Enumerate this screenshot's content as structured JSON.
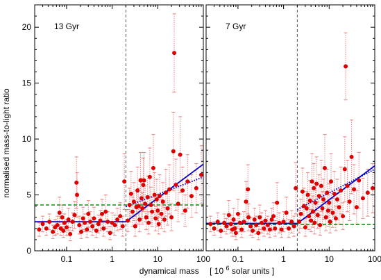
{
  "chart_data": {
    "type": "scatter",
    "xlabel": "dynamical mass",
    "xlabel_units_prefix": "[ 10",
    "xlabel_units_exp": "6",
    "xlabel_units_suffix": " solar units ]",
    "ylabel": "normalised mass-to-light ratio",
    "xscale": "log",
    "xlim": [
      0.02,
      100
    ],
    "ylim": [
      0,
      22
    ],
    "xticks": [
      0.1,
      1,
      10,
      100
    ],
    "xtick_labels": [
      "0.1",
      "1",
      "10",
      "100"
    ],
    "yticks": [
      0,
      5,
      10,
      15,
      20
    ],
    "ytick_labels": [
      "0",
      "5",
      "10",
      "15",
      "20"
    ],
    "grid": false,
    "legend": "none",
    "colors": {
      "points": "#dd0000",
      "errorbars": "#f08080",
      "fit": "#0000cc",
      "constant": "#009900",
      "divider": "#555555"
    },
    "panels": [
      {
        "label": "13 Gyr",
        "vline_x": 2.0,
        "constant_line_y": 4.1,
        "broken_fit": [
          [
            0.02,
            2.6
          ],
          [
            2.0,
            2.6
          ],
          [
            100,
            7.75
          ]
        ],
        "dotted_fit": [
          [
            2.0,
            3.95
          ],
          [
            100,
            6.6
          ]
        ],
        "points": [
          [
            0.025,
            1.9,
            0.6
          ],
          [
            0.03,
            2.4,
            0.7
          ],
          [
            0.036,
            2.0,
            0.6
          ],
          [
            0.042,
            2.6,
            0.7
          ],
          [
            0.05,
            1.7,
            0.6
          ],
          [
            0.056,
            2.1,
            0.7
          ],
          [
            0.063,
            2.3,
            0.8
          ],
          [
            0.07,
            3.4,
            1.4
          ],
          [
            0.075,
            2.0,
            0.6
          ],
          [
            0.08,
            3.0,
            1.1
          ],
          [
            0.085,
            1.8,
            0.6
          ],
          [
            0.09,
            2.5,
            0.8
          ],
          [
            0.1,
            2.1,
            0.7
          ],
          [
            0.11,
            2.8,
            1.0
          ],
          [
            0.12,
            1.5,
            0.6
          ],
          [
            0.135,
            2.6,
            0.8
          ],
          [
            0.15,
            3.2,
            1.2
          ],
          [
            0.165,
            6.1,
            2.3
          ],
          [
            0.17,
            5.0,
            2.0
          ],
          [
            0.19,
            2.3,
            0.8
          ],
          [
            0.21,
            1.7,
            0.6
          ],
          [
            0.23,
            2.9,
            1.0
          ],
          [
            0.25,
            2.5,
            0.8
          ],
          [
            0.28,
            1.9,
            0.7
          ],
          [
            0.3,
            3.3,
            1.2
          ],
          [
            0.33,
            2.6,
            0.9
          ],
          [
            0.37,
            2.2,
            0.8
          ],
          [
            0.4,
            2.9,
            1.0
          ],
          [
            0.45,
            1.8,
            0.6
          ],
          [
            0.5,
            2.4,
            0.8
          ],
          [
            0.55,
            2.7,
            0.9
          ],
          [
            0.6,
            3.3,
            1.3
          ],
          [
            0.65,
            2.0,
            0.7
          ],
          [
            0.72,
            3.5,
            1.5
          ],
          [
            0.8,
            2.6,
            0.9
          ],
          [
            0.9,
            1.6,
            0.6
          ],
          [
            1.0,
            2.5,
            0.9
          ],
          [
            1.15,
            2.3,
            0.9
          ],
          [
            1.3,
            2.8,
            1.0
          ],
          [
            1.5,
            3.1,
            1.2
          ],
          [
            1.7,
            2.2,
            0.9
          ],
          [
            1.85,
            6.2,
            2.5
          ],
          [
            2.2,
            2.7,
            1.0
          ],
          [
            2.4,
            4.1,
            1.5
          ],
          [
            2.6,
            5.1,
            2.0
          ],
          [
            2.8,
            3.5,
            1.3
          ],
          [
            3.0,
            4.4,
            1.7
          ],
          [
            3.2,
            2.2,
            0.9
          ],
          [
            3.4,
            3.9,
            1.5
          ],
          [
            3.6,
            5.4,
            2.1
          ],
          [
            3.8,
            4.0,
            1.6
          ],
          [
            4.0,
            2.8,
            1.1
          ],
          [
            4.2,
            6.3,
            2.5
          ],
          [
            4.4,
            4.7,
            1.8
          ],
          [
            4.6,
            3.8,
            1.4
          ],
          [
            4.8,
            5.9,
            2.4
          ],
          [
            5.0,
            6.3,
            2.5
          ],
          [
            5.3,
            4.2,
            1.6
          ],
          [
            5.6,
            3.0,
            1.1
          ],
          [
            6.0,
            4.8,
            1.9
          ],
          [
            6.3,
            2.5,
            1.0
          ],
          [
            6.7,
            6.6,
            2.6
          ],
          [
            7.1,
            4.1,
            1.6
          ],
          [
            7.5,
            3.5,
            1.3
          ],
          [
            8.0,
            7.4,
            3.0
          ],
          [
            8.5,
            5.0,
            2.0
          ],
          [
            9.0,
            2.9,
            1.1
          ],
          [
            9.5,
            4.6,
            1.8
          ],
          [
            10.0,
            3.6,
            1.4
          ],
          [
            10.5,
            2.4,
            0.9
          ],
          [
            11.0,
            4.9,
            1.9
          ],
          [
            12.0,
            3.3,
            1.3
          ],
          [
            13.0,
            4.4,
            1.7
          ],
          [
            14.0,
            2.8,
            1.1
          ],
          [
            15.0,
            5.2,
            2.1
          ],
          [
            16.5,
            3.8,
            1.5
          ],
          [
            18.0,
            5.5,
            2.2
          ],
          [
            20.0,
            3.0,
            1.2
          ],
          [
            22.0,
            8.9,
            3.5
          ],
          [
            23.0,
            17.7,
            3.5
          ],
          [
            25.0,
            5.9,
            2.3
          ],
          [
            28.0,
            4.2,
            1.6
          ],
          [
            31.0,
            8.6,
            3.4
          ],
          [
            35.0,
            5.4,
            2.1
          ],
          [
            40.0,
            3.6,
            1.4
          ],
          [
            45.0,
            6.2,
            2.4
          ],
          [
            55.0,
            4.9,
            1.9
          ],
          [
            70.0,
            5.6,
            2.2
          ],
          [
            90.0,
            6.8,
            2.6
          ]
        ]
      },
      {
        "label": "7 Gyr",
        "vline_x": 2.0,
        "constant_line_y": 2.35,
        "broken_fit": [
          [
            0.02,
            2.45
          ],
          [
            2.0,
            2.45
          ],
          [
            100,
            7.6
          ]
        ],
        "dotted_fit": [
          [
            2.0,
            3.7
          ],
          [
            100,
            7.3
          ]
        ],
        "points": [
          [
            0.025,
            2.4,
            0.7
          ],
          [
            0.03,
            2.0,
            0.6
          ],
          [
            0.036,
            2.6,
            0.8
          ],
          [
            0.042,
            1.8,
            0.6
          ],
          [
            0.05,
            2.5,
            0.8
          ],
          [
            0.056,
            2.2,
            0.7
          ],
          [
            0.063,
            3.2,
            1.3
          ],
          [
            0.07,
            2.4,
            0.8
          ],
          [
            0.075,
            1.9,
            0.6
          ],
          [
            0.08,
            2.8,
            1.0
          ],
          [
            0.085,
            2.0,
            0.7
          ],
          [
            0.09,
            1.6,
            0.6
          ],
          [
            0.1,
            3.3,
            1.3
          ],
          [
            0.11,
            2.5,
            0.8
          ],
          [
            0.12,
            1.9,
            0.7
          ],
          [
            0.135,
            2.6,
            0.9
          ],
          [
            0.15,
            4.4,
            1.8
          ],
          [
            0.165,
            5.5,
            2.2
          ],
          [
            0.17,
            3.0,
            1.2
          ],
          [
            0.19,
            2.2,
            0.8
          ],
          [
            0.21,
            1.8,
            0.6
          ],
          [
            0.23,
            2.8,
            1.0
          ],
          [
            0.25,
            2.3,
            0.8
          ],
          [
            0.28,
            1.6,
            0.6
          ],
          [
            0.3,
            3.0,
            1.1
          ],
          [
            0.33,
            2.5,
            0.9
          ],
          [
            0.37,
            2.0,
            0.7
          ],
          [
            0.4,
            2.7,
            0.9
          ],
          [
            0.45,
            2.3,
            0.8
          ],
          [
            0.5,
            1.9,
            0.7
          ],
          [
            0.55,
            2.8,
            1.0
          ],
          [
            0.6,
            3.1,
            1.2
          ],
          [
            0.65,
            2.0,
            0.7
          ],
          [
            0.72,
            4.3,
            1.8
          ],
          [
            0.8,
            2.5,
            0.9
          ],
          [
            0.9,
            1.9,
            0.7
          ],
          [
            1.0,
            2.6,
            0.9
          ],
          [
            1.15,
            3.4,
            1.4
          ],
          [
            1.3,
            2.0,
            0.8
          ],
          [
            1.5,
            2.6,
            1.0
          ],
          [
            1.7,
            2.2,
            0.9
          ],
          [
            1.85,
            5.6,
            2.3
          ],
          [
            2.2,
            2.6,
            1.0
          ],
          [
            2.4,
            3.3,
            1.3
          ],
          [
            2.6,
            5.3,
            2.1
          ],
          [
            2.8,
            4.0,
            1.6
          ],
          [
            3.0,
            2.1,
            0.8
          ],
          [
            3.2,
            3.8,
            1.5
          ],
          [
            3.4,
            5.0,
            2.0
          ],
          [
            3.6,
            3.1,
            1.2
          ],
          [
            3.8,
            4.5,
            1.8
          ],
          [
            4.0,
            2.7,
            1.0
          ],
          [
            4.2,
            6.2,
            2.5
          ],
          [
            4.4,
            3.5,
            1.4
          ],
          [
            4.6,
            5.6,
            2.2
          ],
          [
            4.8,
            2.5,
            1.0
          ],
          [
            5.0,
            4.3,
            1.7
          ],
          [
            5.3,
            6.0,
            2.4
          ],
          [
            5.6,
            3.2,
            1.2
          ],
          [
            6.0,
            4.9,
            1.9
          ],
          [
            6.3,
            2.3,
            0.9
          ],
          [
            6.7,
            5.8,
            2.3
          ],
          [
            7.1,
            3.8,
            1.5
          ],
          [
            7.5,
            4.6,
            1.8
          ],
          [
            8.0,
            7.4,
            3.0
          ],
          [
            8.5,
            3.0,
            1.2
          ],
          [
            9.0,
            5.2,
            2.1
          ],
          [
            9.5,
            3.6,
            1.4
          ],
          [
            10.0,
            4.3,
            1.7
          ],
          [
            10.5,
            2.6,
            1.0
          ],
          [
            11.0,
            6.2,
            2.5
          ],
          [
            12.0,
            3.4,
            1.3
          ],
          [
            13.0,
            5.1,
            2.0
          ],
          [
            14.0,
            2.9,
            1.1
          ],
          [
            15.0,
            4.6,
            1.8
          ],
          [
            16.5,
            3.9,
            1.5
          ],
          [
            18.0,
            5.4,
            2.1
          ],
          [
            20.0,
            3.1,
            1.2
          ],
          [
            22.0,
            7.3,
            2.9
          ],
          [
            23.0,
            16.5,
            3.0
          ],
          [
            25.0,
            5.8,
            2.3
          ],
          [
            28.0,
            4.4,
            1.7
          ],
          [
            31.0,
            8.4,
            3.3
          ],
          [
            35.0,
            5.5,
            2.2
          ],
          [
            40.0,
            3.9,
            1.5
          ],
          [
            45.0,
            6.3,
            2.5
          ],
          [
            55.0,
            4.7,
            1.8
          ],
          [
            70.0,
            5.2,
            2.1
          ],
          [
            90.0,
            5.6,
            2.2
          ]
        ]
      }
    ]
  }
}
